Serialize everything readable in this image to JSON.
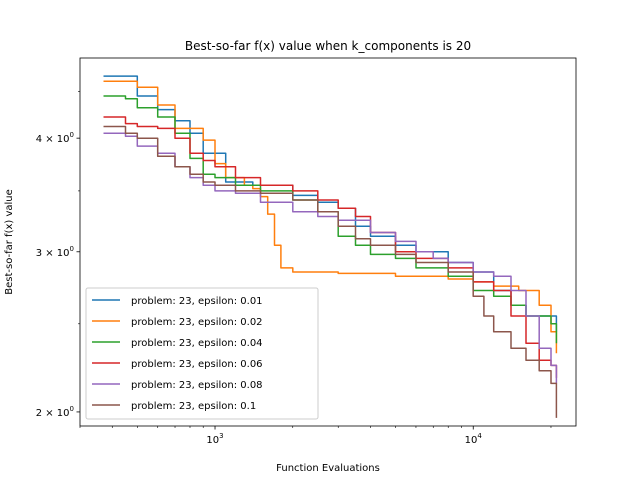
{
  "chart_data": {
    "type": "line",
    "title": "Best-so-far f(x) value when k_components is 20",
    "xlabel": "Function Evaluations",
    "ylabel": "Best-so-far f(x) value",
    "xscale": "log",
    "yscale": "log",
    "xlim": [
      300,
      25000
    ],
    "ylim": [
      1.93,
      4.9
    ],
    "x_ticks": [
      {
        "value": 1000,
        "base": "10",
        "exp": "3"
      },
      {
        "value": 10000,
        "base": "10",
        "exp": "4"
      }
    ],
    "y_ticks": [
      {
        "value": 2,
        "mant": "2 × 10",
        "exp": "0"
      },
      {
        "value": 3,
        "mant": "3 × 10",
        "exp": "0"
      },
      {
        "value": 4,
        "mant": "4 × 10",
        "exp": "0"
      }
    ],
    "grid": false,
    "legend_position": "lower-left",
    "series": [
      {
        "name": "problem: 23, epsilon: 0.01",
        "color": "#1f77b4",
        "points": [
          [
            370,
            4.68
          ],
          [
            450,
            4.68
          ],
          [
            500,
            4.45
          ],
          [
            600,
            4.3
          ],
          [
            700,
            4.18
          ],
          [
            800,
            4.05
          ],
          [
            900,
            3.85
          ],
          [
            1100,
            3.58
          ],
          [
            1400,
            3.55
          ],
          [
            1800,
            3.55
          ],
          [
            2000,
            3.46
          ],
          [
            2500,
            3.4
          ],
          [
            3000,
            3.35
          ],
          [
            3500,
            3.2
          ],
          [
            4000,
            3.12
          ],
          [
            5000,
            3.05
          ],
          [
            6000,
            3.0
          ],
          [
            8000,
            2.92
          ],
          [
            10000,
            2.85
          ],
          [
            12000,
            2.72
          ],
          [
            14000,
            2.62
          ],
          [
            16000,
            2.55
          ],
          [
            20000,
            2.55
          ],
          [
            21000,
            2.45
          ]
        ]
      },
      {
        "name": "problem: 23, epsilon: 0.02",
        "color": "#ff7f0e",
        "points": [
          [
            370,
            4.62
          ],
          [
            450,
            4.62
          ],
          [
            500,
            4.55
          ],
          [
            600,
            4.35
          ],
          [
            700,
            4.1
          ],
          [
            900,
            3.98
          ],
          [
            1000,
            3.75
          ],
          [
            1100,
            3.62
          ],
          [
            1300,
            3.55
          ],
          [
            1400,
            3.52
          ],
          [
            1500,
            3.45
          ],
          [
            1600,
            3.3
          ],
          [
            1700,
            3.05
          ],
          [
            1800,
            2.88
          ],
          [
            2000,
            2.85
          ],
          [
            2500,
            2.85
          ],
          [
            3000,
            2.84
          ],
          [
            4000,
            2.84
          ],
          [
            5000,
            2.82
          ],
          [
            8000,
            2.8
          ],
          [
            10000,
            2.78
          ],
          [
            12000,
            2.75
          ],
          [
            15000,
            2.72
          ],
          [
            18000,
            2.62
          ],
          [
            20000,
            2.45
          ],
          [
            21000,
            2.32
          ]
        ]
      },
      {
        "name": "problem: 23, epsilon: 0.04",
        "color": "#2ca02c",
        "points": [
          [
            370,
            4.45
          ],
          [
            450,
            4.42
          ],
          [
            500,
            4.32
          ],
          [
            600,
            4.22
          ],
          [
            700,
            4.05
          ],
          [
            800,
            3.8
          ],
          [
            900,
            3.65
          ],
          [
            1000,
            3.62
          ],
          [
            1200,
            3.55
          ],
          [
            1500,
            3.5
          ],
          [
            2000,
            3.42
          ],
          [
            2500,
            3.32
          ],
          [
            3000,
            3.12
          ],
          [
            3500,
            3.05
          ],
          [
            4000,
            2.98
          ],
          [
            5000,
            2.95
          ],
          [
            6000,
            2.88
          ],
          [
            8000,
            2.82
          ],
          [
            10000,
            2.72
          ],
          [
            12000,
            2.68
          ],
          [
            14000,
            2.62
          ],
          [
            16000,
            2.55
          ],
          [
            20000,
            2.5
          ],
          [
            21000,
            2.38
          ]
        ]
      },
      {
        "name": "problem: 23, epsilon: 0.06",
        "color": "#d62728",
        "points": [
          [
            370,
            4.22
          ],
          [
            450,
            4.15
          ],
          [
            500,
            4.12
          ],
          [
            600,
            4.1
          ],
          [
            700,
            4.0
          ],
          [
            800,
            3.85
          ],
          [
            900,
            3.78
          ],
          [
            1000,
            3.72
          ],
          [
            1200,
            3.62
          ],
          [
            1500,
            3.55
          ],
          [
            2000,
            3.5
          ],
          [
            2500,
            3.42
          ],
          [
            3000,
            3.35
          ],
          [
            3500,
            3.28
          ],
          [
            4000,
            3.15
          ],
          [
            5000,
            3.0
          ],
          [
            6000,
            2.95
          ],
          [
            8000,
            2.88
          ],
          [
            10000,
            2.78
          ],
          [
            12000,
            2.72
          ],
          [
            14000,
            2.55
          ],
          [
            16000,
            2.38
          ],
          [
            18000,
            2.28
          ],
          [
            20000,
            2.25
          ],
          [
            21000,
            2.18
          ]
        ]
      },
      {
        "name": "problem: 23, epsilon: 0.08",
        "color": "#9467bd",
        "points": [
          [
            370,
            4.05
          ],
          [
            450,
            4.02
          ],
          [
            500,
            3.92
          ],
          [
            600,
            3.85
          ],
          [
            700,
            3.72
          ],
          [
            800,
            3.62
          ],
          [
            900,
            3.55
          ],
          [
            1000,
            3.5
          ],
          [
            1200,
            3.48
          ],
          [
            1500,
            3.4
          ],
          [
            2000,
            3.32
          ],
          [
            2500,
            3.28
          ],
          [
            3000,
            3.25
          ],
          [
            4000,
            3.15
          ],
          [
            5000,
            3.08
          ],
          [
            6000,
            3.0
          ],
          [
            7000,
            2.95
          ],
          [
            8000,
            2.92
          ],
          [
            10000,
            2.85
          ],
          [
            12000,
            2.82
          ],
          [
            14000,
            2.72
          ],
          [
            16000,
            2.55
          ],
          [
            18000,
            2.35
          ],
          [
            20000,
            2.25
          ],
          [
            21000,
            2.15
          ]
        ]
      },
      {
        "name": "problem: 23, epsilon: 0.1",
        "color": "#8c564b",
        "points": [
          [
            370,
            4.12
          ],
          [
            450,
            4.05
          ],
          [
            500,
            4.0
          ],
          [
            600,
            3.82
          ],
          [
            700,
            3.72
          ],
          [
            800,
            3.65
          ],
          [
            900,
            3.58
          ],
          [
            1000,
            3.55
          ],
          [
            1200,
            3.5
          ],
          [
            1500,
            3.48
          ],
          [
            2000,
            3.42
          ],
          [
            2500,
            3.32
          ],
          [
            3000,
            3.2
          ],
          [
            3500,
            3.1
          ],
          [
            4000,
            3.05
          ],
          [
            5000,
            2.98
          ],
          [
            6000,
            2.92
          ],
          [
            8000,
            2.85
          ],
          [
            10000,
            2.68
          ],
          [
            11000,
            2.55
          ],
          [
            12000,
            2.45
          ],
          [
            14000,
            2.35
          ],
          [
            16000,
            2.28
          ],
          [
            18000,
            2.22
          ],
          [
            20000,
            2.15
          ],
          [
            21000,
            1.97
          ]
        ]
      }
    ]
  }
}
